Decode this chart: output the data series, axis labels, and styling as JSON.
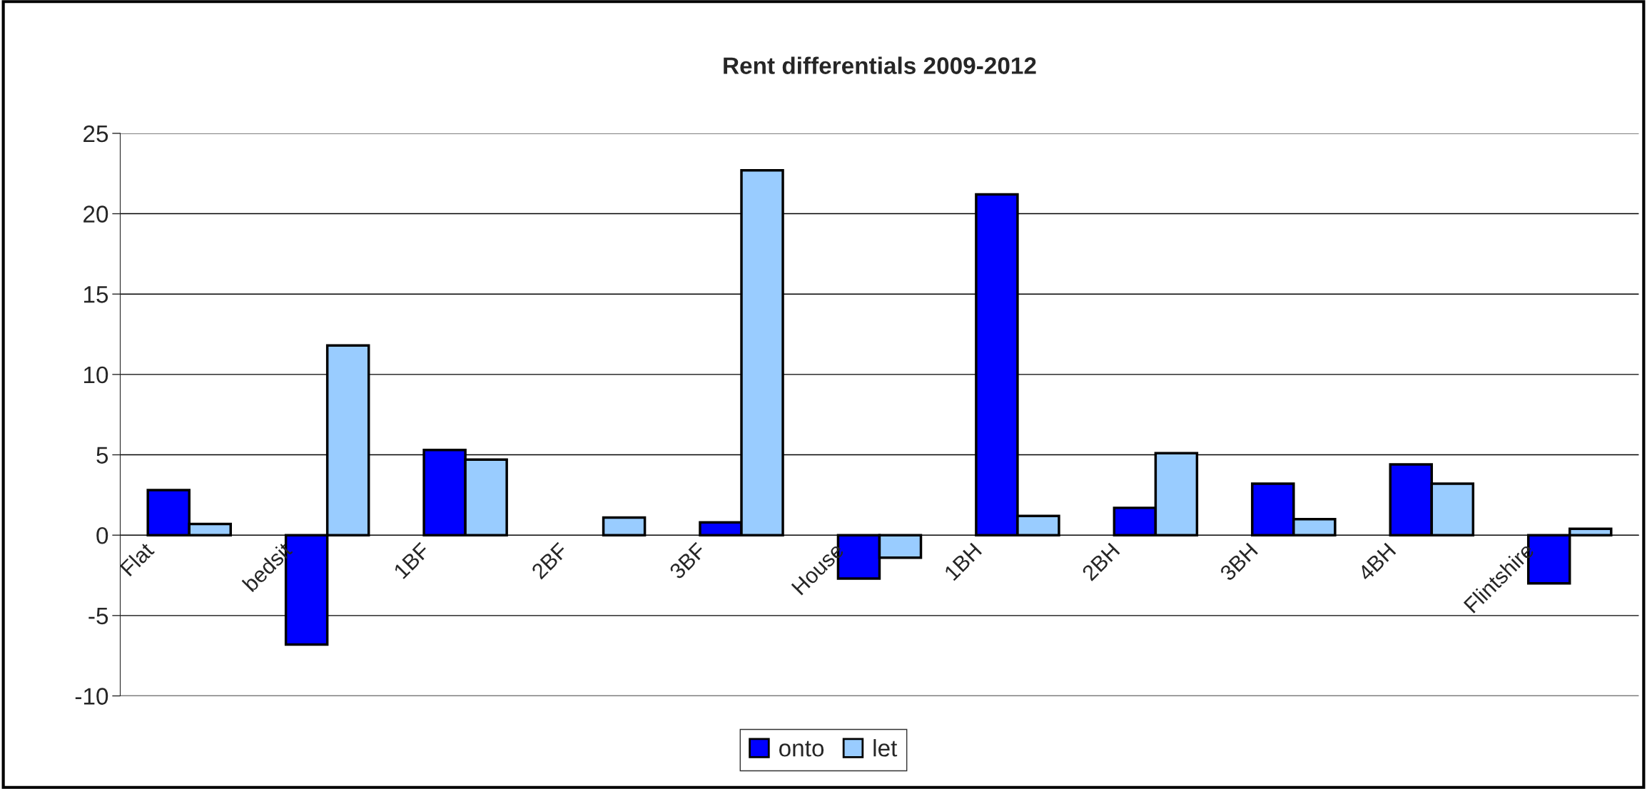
{
  "chart_data": {
    "type": "bar",
    "title": "Rent differentials 2009-2012",
    "categories": [
      "Flat",
      "bedsit",
      "1BF",
      "2BF",
      "3BF",
      "House",
      "1BH",
      "2BH",
      "3BH",
      "4BH",
      "Flintshire"
    ],
    "series": [
      {
        "name": "onto",
        "color": "#0000ff",
        "values": [
          2.8,
          -6.8,
          5.3,
          null,
          0.8,
          -2.7,
          21.2,
          1.7,
          3.2,
          4.4,
          -3.0
        ]
      },
      {
        "name": "let",
        "color": "#99ccff",
        "values": [
          0.7,
          11.8,
          4.7,
          1.1,
          22.7,
          -1.4,
          1.2,
          5.1,
          1.0,
          3.2,
          0.4
        ]
      }
    ],
    "ylim": [
      -10,
      25
    ],
    "yticks": [
      -10,
      -5,
      0,
      5,
      10,
      15,
      20,
      25
    ],
    "grid": "y",
    "legend": "bottom"
  }
}
